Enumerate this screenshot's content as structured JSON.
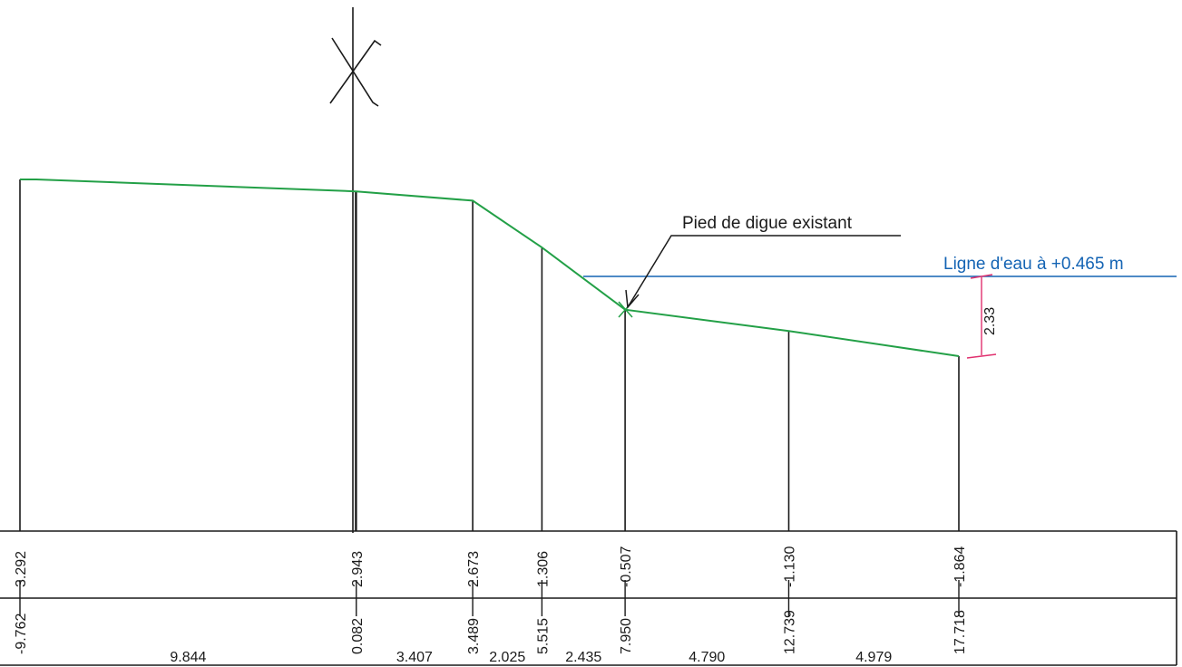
{
  "drawing": {
    "annotation_label": "Pied de digue existant",
    "water_line_label": "Ligne d'eau à +0.465 m",
    "water_depth_label": "2.33",
    "colors": {
      "terrain": "#23a047",
      "water": "#1464b4",
      "dimension": "#e0306e",
      "ink": "#1a1a1a"
    }
  },
  "chart_data": {
    "type": "line",
    "series": [
      {
        "x": [
          -9.762,
          0.082,
          3.489,
          5.515,
          7.95,
          12.739,
          17.718
        ],
        "y": [
          3.292,
          2.943,
          2.673,
          1.306,
          -0.507,
          -1.13,
          -1.864
        ]
      }
    ],
    "water_level": 0.465,
    "stations": [
      {
        "distance": "-9.762",
        "elevation": "3.292"
      },
      {
        "distance": "0.082",
        "elevation": "2.943"
      },
      {
        "distance": "3.489",
        "elevation": "2.673"
      },
      {
        "distance": "5.515",
        "elevation": "1.306"
      },
      {
        "distance": "7.950",
        "elevation": "-0.507"
      },
      {
        "distance": "12.739",
        "elevation": "-1.130"
      },
      {
        "distance": "17.718",
        "elevation": "-1.864"
      }
    ],
    "intervals": [
      "9.844",
      "3.407",
      "2.025",
      "2.435",
      "4.790",
      "4.979"
    ]
  }
}
